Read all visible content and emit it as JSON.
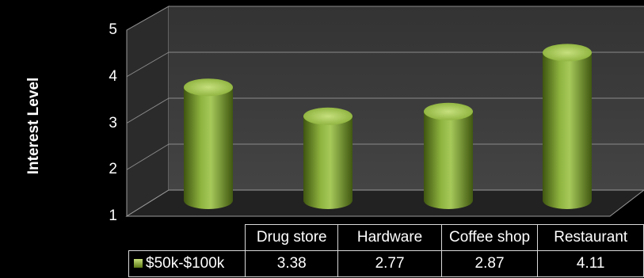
{
  "chart_data": {
    "type": "bar",
    "style": "3d-cylinder",
    "title": "",
    "xlabel": "",
    "ylabel": "Interest Level",
    "ylim": [
      1,
      5
    ],
    "yticks": [
      1,
      2,
      3,
      4,
      5
    ],
    "categories": [
      "Drug store",
      "Hardware",
      "Coffee shop",
      "Restaurant"
    ],
    "series": [
      {
        "name": "$50k-$100k",
        "values": [
          3.38,
          2.77,
          2.87,
          4.11
        ],
        "color": "#7aa031"
      }
    ],
    "data_table": true,
    "grid": true,
    "background": "#000000",
    "wall_color": "#3a3a3a",
    "floor_color": "#262626"
  }
}
